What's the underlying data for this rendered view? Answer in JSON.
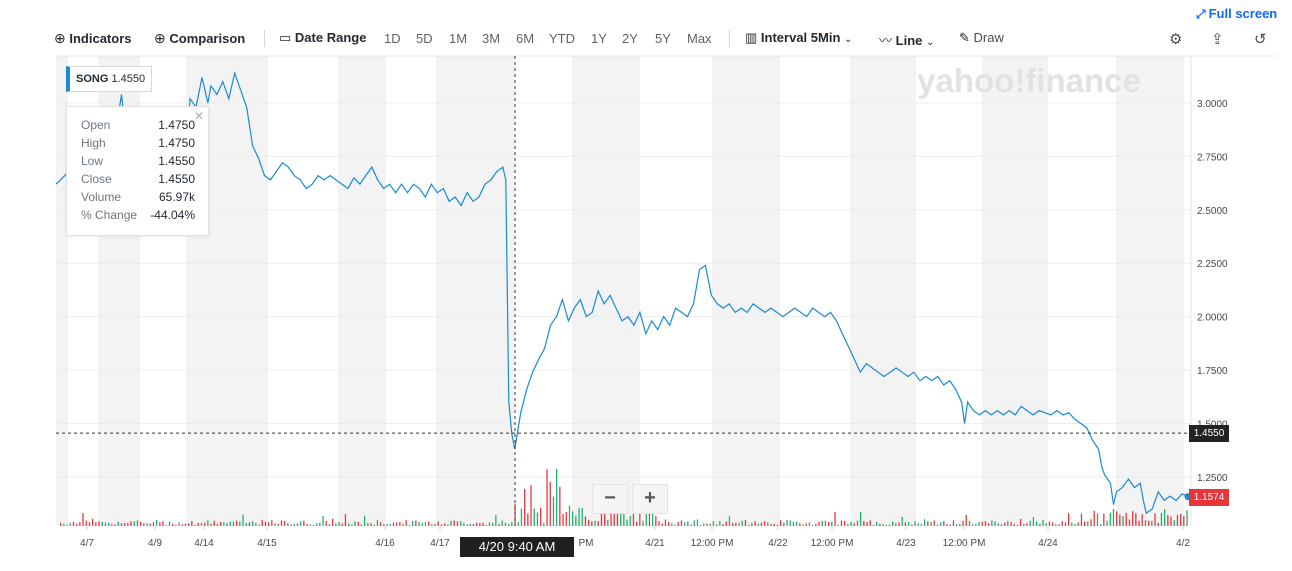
{
  "toolbar": {
    "indicators": "Indicators",
    "comparison": "Comparison",
    "date_range": "Date Range",
    "ranges": [
      "1D",
      "5D",
      "1M",
      "3M",
      "6M",
      "YTD",
      "1Y",
      "2Y",
      "5Y",
      "Max"
    ],
    "interval_label": "Interval",
    "interval_value": "5Min",
    "chart_type": "Line",
    "draw": "Draw",
    "full_screen": "Full screen"
  },
  "watermark": "yahoo!finance",
  "legend": {
    "symbol": "SONG",
    "value": "1.4550"
  },
  "tooltip": {
    "rows": [
      {
        "k": "Open",
        "v": "1.4750"
      },
      {
        "k": "High",
        "v": "1.4750"
      },
      {
        "k": "Low",
        "v": "1.4550"
      },
      {
        "k": "Close",
        "v": "1.4550"
      },
      {
        "k": "Volume",
        "v": "65.97k"
      },
      {
        "k": "% Change",
        "v": "-44.04%"
      }
    ]
  },
  "zoom": {
    "minus": "−",
    "plus": "+"
  },
  "hover_label": "4/20 9:40 AM",
  "price_labels": {
    "crosshair": "1.4550",
    "last": "1.1574"
  },
  "colors": {
    "line": "#1a8ad4",
    "up": "#21b16d",
    "down": "#f0353a",
    "band": "#f3f3f3",
    "last_bg": "#e8353a",
    "cross_bg": "#232323"
  },
  "chart_data": {
    "type": "line",
    "title": "",
    "xlabel": "",
    "ylabel": "",
    "ylim": [
      1.02,
      3.22
    ],
    "yticks": [
      1.25,
      1.5,
      1.75,
      2.0,
      2.25,
      2.5,
      2.75,
      3.0
    ],
    "ytick_labels": [
      "1.2500",
      "1.5000",
      "1.7500",
      "2.0000",
      "2.2500",
      "2.5000",
      "2.7500",
      "3.0000"
    ],
    "xticks": [
      "4/7",
      "4/9",
      "4/14",
      "4/15",
      "4/16",
      "4/17",
      "4/20 9:40 AM",
      "4/21",
      "12:00 PM",
      "4/22",
      "12:00 PM",
      "4/23",
      "12:00 PM",
      "4/24",
      "4/2"
    ],
    "crosshair": {
      "x": "4/20 9:40 AM",
      "y": 1.455
    },
    "last": 1.1574,
    "series": [
      {
        "values": [
          [
            0,
            2.62
          ],
          [
            3,
            2.66
          ],
          [
            5,
            2.7
          ],
          [
            6,
            2.58
          ],
          [
            8,
            2.64
          ],
          [
            10,
            2.72
          ],
          [
            11,
            2.66
          ],
          [
            13,
            2.74
          ],
          [
            14,
            2.85
          ],
          [
            16,
            2.8
          ],
          [
            17,
            2.78
          ],
          [
            19,
            2.9
          ],
          [
            20,
            2.86
          ],
          [
            22,
            3.04
          ],
          [
            24,
            2.78
          ],
          [
            26,
            2.84
          ],
          [
            28,
            2.92
          ],
          [
            30,
            2.88
          ],
          [
            32,
            2.95
          ],
          [
            34,
            2.82
          ],
          [
            36,
            2.78
          ],
          [
            38,
            2.88
          ],
          [
            40,
            2.8
          ],
          [
            42,
            2.9
          ],
          [
            44,
            2.86
          ],
          [
            45,
            3.02
          ],
          [
            47,
            2.98
          ],
          [
            49,
            3.12
          ],
          [
            51,
            3.0
          ],
          [
            52,
            3.08
          ],
          [
            54,
            3.04
          ],
          [
            56,
            3.1
          ],
          [
            58,
            3.02
          ],
          [
            60,
            3.14
          ],
          [
            62,
            3.06
          ],
          [
            64,
            2.98
          ],
          [
            66,
            2.8
          ],
          [
            68,
            2.74
          ],
          [
            70,
            2.66
          ],
          [
            72,
            2.64
          ],
          [
            74,
            2.68
          ],
          [
            76,
            2.72
          ],
          [
            78,
            2.7
          ],
          [
            80,
            2.66
          ],
          [
            82,
            2.64
          ],
          [
            84,
            2.6
          ],
          [
            86,
            2.62
          ],
          [
            88,
            2.66
          ],
          [
            90,
            2.64
          ],
          [
            92,
            2.66
          ],
          [
            94,
            2.64
          ],
          [
            96,
            2.62
          ],
          [
            98,
            2.6
          ],
          [
            100,
            2.65
          ],
          [
            102,
            2.62
          ],
          [
            104,
            2.66
          ],
          [
            106,
            2.7
          ],
          [
            108,
            2.64
          ],
          [
            110,
            2.6
          ],
          [
            112,
            2.62
          ],
          [
            114,
            2.58
          ],
          [
            116,
            2.62
          ],
          [
            118,
            2.58
          ],
          [
            120,
            2.62
          ],
          [
            122,
            2.6
          ],
          [
            124,
            2.56
          ],
          [
            126,
            2.62
          ],
          [
            128,
            2.58
          ],
          [
            130,
            2.6
          ],
          [
            132,
            2.54
          ],
          [
            134,
            2.56
          ],
          [
            136,
            2.52
          ],
          [
            138,
            2.58
          ],
          [
            140,
            2.54
          ],
          [
            142,
            2.56
          ],
          [
            144,
            2.62
          ],
          [
            146,
            2.64
          ],
          [
            148,
            2.68
          ],
          [
            150,
            2.7
          ],
          [
            151,
            2.64
          ],
          [
            152,
            1.6
          ],
          [
            153,
            1.45
          ],
          [
            154,
            1.38
          ],
          [
            156,
            1.55
          ],
          [
            158,
            1.66
          ],
          [
            160,
            1.74
          ],
          [
            162,
            1.8
          ],
          [
            164,
            1.85
          ],
          [
            166,
            1.96
          ],
          [
            168,
            2.0
          ],
          [
            170,
            2.08
          ],
          [
            172,
            1.98
          ],
          [
            174,
            2.04
          ],
          [
            176,
            2.08
          ],
          [
            178,
            2.0
          ],
          [
            180,
            2.02
          ],
          [
            182,
            2.12
          ],
          [
            184,
            2.06
          ],
          [
            186,
            2.1
          ],
          [
            188,
            2.04
          ],
          [
            190,
            1.98
          ],
          [
            192,
            2.0
          ],
          [
            194,
            1.96
          ],
          [
            196,
            2.02
          ],
          [
            198,
            1.92
          ],
          [
            200,
            1.98
          ],
          [
            202,
            1.94
          ],
          [
            204,
            2.0
          ],
          [
            206,
            1.96
          ],
          [
            208,
            2.04
          ],
          [
            210,
            2.02
          ],
          [
            212,
            2.0
          ],
          [
            214,
            2.06
          ],
          [
            216,
            2.22
          ],
          [
            218,
            2.24
          ],
          [
            220,
            2.1
          ],
          [
            222,
            2.06
          ],
          [
            224,
            2.04
          ],
          [
            226,
            2.06
          ],
          [
            228,
            2.02
          ],
          [
            230,
            2.04
          ],
          [
            232,
            2.02
          ],
          [
            234,
            2.06
          ],
          [
            236,
            2.04
          ],
          [
            238,
            2.02
          ],
          [
            240,
            2.04
          ],
          [
            242,
            2.02
          ],
          [
            244,
            2.0
          ],
          [
            246,
            2.02
          ],
          [
            248,
            2.04
          ],
          [
            250,
            2.02
          ],
          [
            252,
            2.0
          ],
          [
            254,
            2.04
          ],
          [
            256,
            2.02
          ],
          [
            258,
            2.0
          ],
          [
            260,
            2.02
          ],
          [
            262,
            1.98
          ],
          [
            264,
            1.92
          ],
          [
            266,
            1.86
          ],
          [
            268,
            1.8
          ],
          [
            270,
            1.74
          ],
          [
            272,
            1.78
          ],
          [
            274,
            1.76
          ],
          [
            276,
            1.74
          ],
          [
            278,
            1.72
          ],
          [
            280,
            1.74
          ],
          [
            282,
            1.76
          ],
          [
            284,
            1.74
          ],
          [
            286,
            1.72
          ],
          [
            288,
            1.74
          ],
          [
            290,
            1.7
          ],
          [
            292,
            1.72
          ],
          [
            294,
            1.7
          ],
          [
            296,
            1.72
          ],
          [
            298,
            1.68
          ],
          [
            300,
            1.7
          ],
          [
            302,
            1.66
          ],
          [
            304,
            1.6
          ],
          [
            305,
            1.5
          ],
          [
            306,
            1.6
          ],
          [
            308,
            1.56
          ],
          [
            310,
            1.54
          ],
          [
            312,
            1.56
          ],
          [
            314,
            1.54
          ],
          [
            316,
            1.56
          ],
          [
            318,
            1.54
          ],
          [
            320,
            1.56
          ],
          [
            322,
            1.54
          ],
          [
            324,
            1.58
          ],
          [
            326,
            1.56
          ],
          [
            328,
            1.54
          ],
          [
            330,
            1.56
          ],
          [
            332,
            1.55
          ],
          [
            334,
            1.54
          ],
          [
            336,
            1.56
          ],
          [
            338,
            1.54
          ],
          [
            340,
            1.55
          ],
          [
            342,
            1.52
          ],
          [
            344,
            1.5
          ],
          [
            346,
            1.48
          ],
          [
            348,
            1.42
          ],
          [
            350,
            1.38
          ],
          [
            351,
            1.3
          ],
          [
            352,
            1.26
          ],
          [
            354,
            1.22
          ],
          [
            355,
            1.12
          ],
          [
            356,
            1.18
          ],
          [
            358,
            1.2
          ],
          [
            360,
            1.24
          ],
          [
            362,
            1.2
          ],
          [
            364,
            1.22
          ],
          [
            365,
            1.14
          ],
          [
            366,
            1.08
          ],
          [
            368,
            1.1
          ],
          [
            370,
            1.18
          ],
          [
            372,
            1.14
          ],
          [
            374,
            1.16
          ],
          [
            376,
            1.14
          ],
          [
            378,
            1.17
          ],
          [
            380,
            1.1574
          ]
        ]
      }
    ]
  }
}
